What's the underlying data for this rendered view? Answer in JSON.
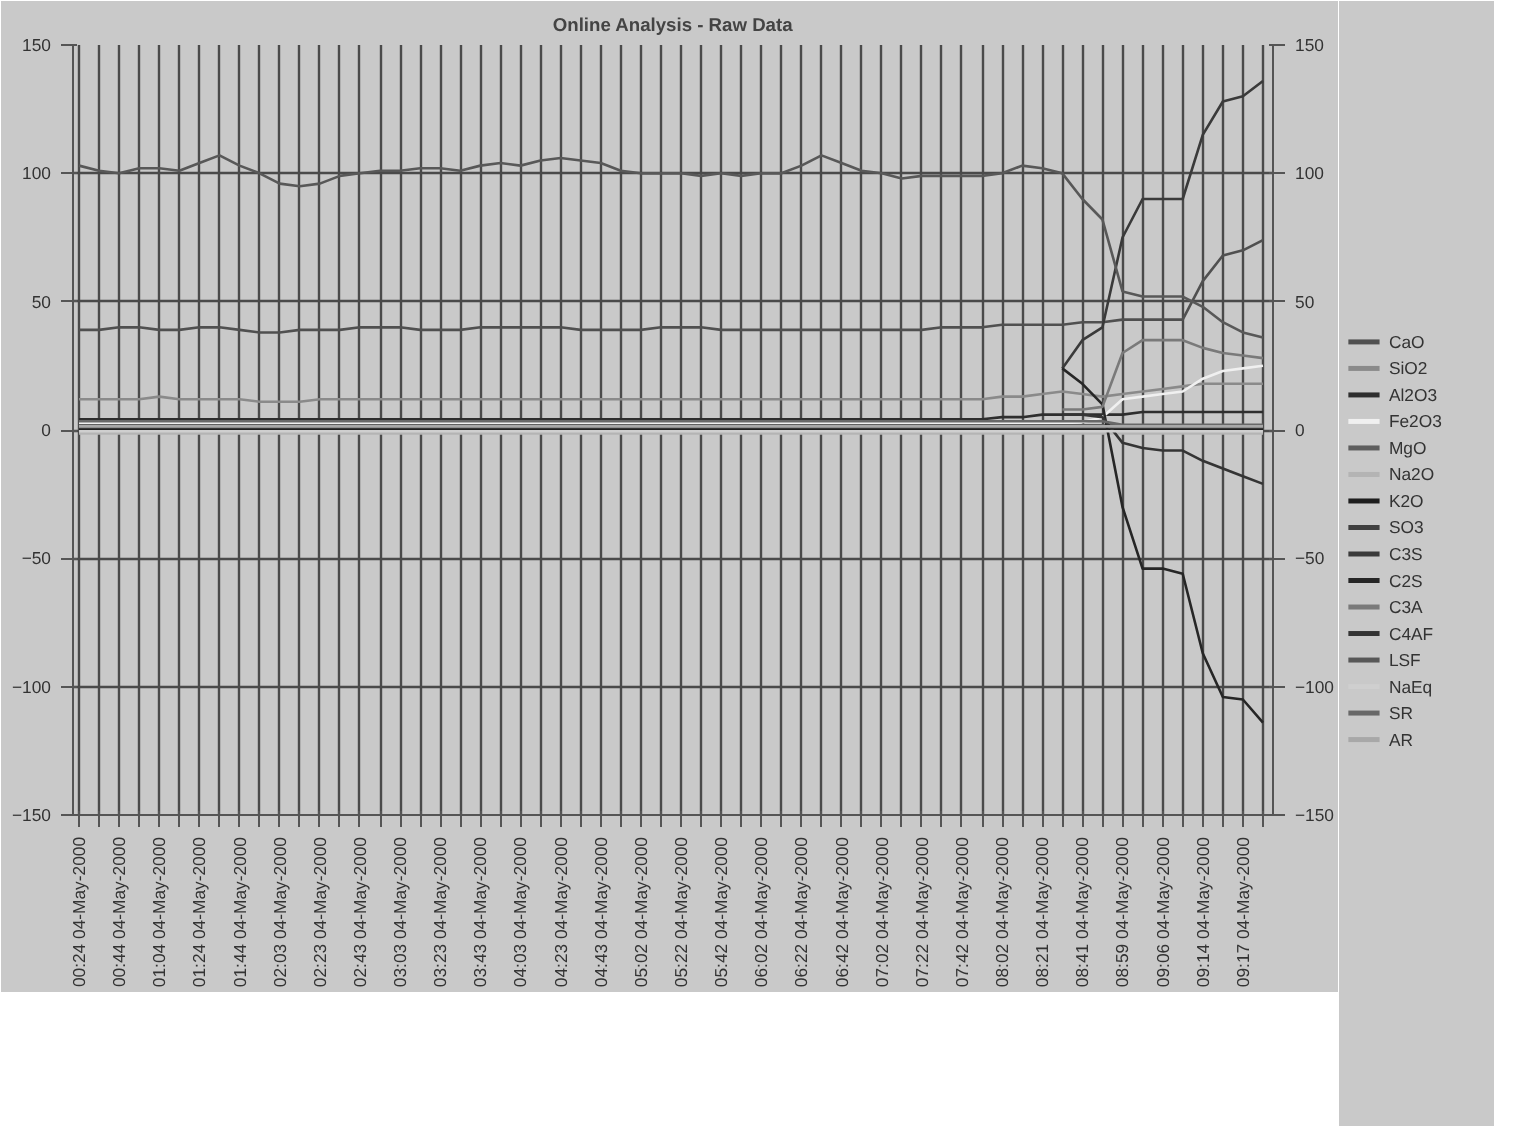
{
  "chart_data": {
    "type": "line",
    "title": "Online Analysis - Raw Data",
    "categories": [
      "00:24 04-May-2000",
      null,
      "00:44 04-May-2000",
      null,
      "01:04 04-May-2000",
      null,
      "01:24 04-May-2000",
      null,
      "01:44 04-May-2000",
      null,
      "02:03 04-May-2000",
      null,
      "02:23 04-May-2000",
      null,
      "02:43 04-May-2000",
      null,
      "03:03 04-May-2000",
      null,
      "03:23 04-May-2000",
      null,
      "03:43 04-May-2000",
      null,
      "04:03 04-May-2000",
      null,
      "04:23 04-May-2000",
      null,
      "04:43 04-May-2000",
      null,
      "05:02 04-May-2000",
      null,
      "05:22 04-May-2000",
      null,
      "05:42 04-May-2000",
      null,
      "06:02 04-May-2000",
      null,
      "06:22 04-May-2000",
      null,
      "06:42 04-May-2000",
      null,
      "07:02 04-May-2000",
      null,
      "07:22 04-May-2000",
      null,
      "07:42 04-May-2000",
      null,
      "08:02 04-May-2000",
      null,
      "08:21 04-May-2000",
      null,
      "08:41 04-May-2000",
      null,
      "08:59 04-May-2000",
      null,
      "09:06 04-May-2000",
      null,
      "09:14 04-May-2000",
      null,
      "09:17 04-May-2000",
      null
    ],
    "ylim": [
      -150,
      150
    ],
    "yticks": [
      -150,
      -100,
      -50,
      0,
      50,
      100,
      150
    ],
    "y2lim": [
      -150,
      150
    ],
    "y2ticks": [
      -150,
      -100,
      -50,
      0,
      50,
      100,
      150
    ],
    "grid": true,
    "legend": "right",
    "series": [
      {
        "name": "CaO",
        "color": "#505050",
        "values": [
          39,
          39,
          40,
          40,
          39,
          39,
          40,
          40,
          39,
          38,
          38,
          39,
          39,
          39,
          40,
          40,
          40,
          39,
          39,
          39,
          40,
          40,
          40,
          40,
          40,
          39,
          39,
          39,
          39,
          40,
          40,
          40,
          39,
          39,
          39,
          39,
          39,
          39,
          39,
          39,
          39,
          39,
          39,
          40,
          40,
          40,
          41,
          41,
          41,
          41,
          42,
          42,
          43,
          43,
          43,
          43,
          58,
          68,
          70,
          74
        ]
      },
      {
        "name": "SiO2",
        "color": "#8a8a8a",
        "values": [
          12,
          12,
          12,
          12,
          13,
          12,
          12,
          12,
          12,
          11,
          11,
          11,
          12,
          12,
          12,
          12,
          12,
          12,
          12,
          12,
          12,
          12,
          12,
          12,
          12,
          12,
          12,
          12,
          12,
          12,
          12,
          12,
          12,
          12,
          12,
          12,
          12,
          12,
          12,
          12,
          12,
          12,
          12,
          12,
          12,
          12,
          13,
          13,
          14,
          15,
          14,
          13,
          14,
          15,
          16,
          17,
          18,
          18,
          18,
          18
        ]
      },
      {
        "name": "Al2O3",
        "color": "#2e2e2e",
        "values": [
          4.2,
          4.2,
          4.2,
          4.2,
          4.2,
          4.2,
          4.2,
          4.2,
          4.2,
          4.2,
          4.2,
          4.2,
          4.2,
          4.2,
          4.2,
          4.2,
          4.2,
          4.2,
          4.2,
          4.2,
          4.2,
          4.2,
          4.2,
          4.2,
          4.2,
          4.2,
          4.2,
          4.2,
          4.2,
          4.2,
          4.2,
          4.2,
          4.2,
          4.2,
          4.2,
          4.2,
          4.2,
          4.2,
          4.2,
          4.2,
          4.2,
          4.2,
          4.2,
          4.2,
          4.2,
          4.2,
          5,
          5,
          6,
          6,
          6,
          6,
          6,
          7,
          7,
          7,
          7,
          7,
          7,
          7
        ]
      },
      {
        "name": "Fe2O3",
        "color": "#f0f0f0",
        "values": [
          2.6,
          2.6,
          2.6,
          2.6,
          2.6,
          2.6,
          2.6,
          2.6,
          2.6,
          2.6,
          2.6,
          2.6,
          2.6,
          2.6,
          2.6,
          2.6,
          2.6,
          2.6,
          2.6,
          2.6,
          2.6,
          2.6,
          2.6,
          2.6,
          2.6,
          2.6,
          2.6,
          2.6,
          2.6,
          2.6,
          2.6,
          2.6,
          2.6,
          2.6,
          2.6,
          2.6,
          2.6,
          2.6,
          2.6,
          2.6,
          2.6,
          2.6,
          2.6,
          2.6,
          2.6,
          2.6,
          2.6,
          2.6,
          2.6,
          2.6,
          3,
          5,
          12,
          13,
          14,
          15,
          20,
          23,
          24,
          25
        ]
      },
      {
        "name": "MgO",
        "color": "#5e5e5e",
        "values": [
          1.8,
          1.8,
          1.8,
          1.8,
          1.8,
          1.8,
          1.8,
          1.8,
          1.8,
          1.8,
          1.8,
          1.8,
          1.8,
          1.8,
          1.8,
          1.8,
          1.8,
          1.8,
          1.8,
          1.8,
          1.8,
          1.8,
          1.8,
          1.8,
          1.8,
          1.8,
          1.8,
          1.8,
          1.8,
          1.8,
          1.8,
          1.8,
          1.8,
          1.8,
          1.8,
          1.8,
          1.8,
          1.8,
          1.8,
          1.8,
          1.8,
          1.8,
          1.8,
          1.8,
          1.8,
          1.8,
          1.8,
          1.8,
          1.8,
          1.8,
          1.8,
          1.8,
          1.8,
          1.8,
          1.8,
          1.8,
          1.8,
          1.8,
          1.8,
          1.8
        ]
      },
      {
        "name": "Na2O",
        "color": "#b4b4b4",
        "values": [
          -1.3,
          -1.3,
          -1.3,
          -1.3,
          -1.3,
          -1.3,
          -1.3,
          -1.3,
          -1.3,
          -1.3,
          -1.3,
          -1.3,
          -1.3,
          -1.3,
          -1.3,
          -1.3,
          -1.3,
          -1.3,
          -1.3,
          -1.3,
          -1.3,
          -1.3,
          -1.3,
          -1.3,
          -1.3,
          -1.3,
          -1.3,
          -1.3,
          -1.3,
          -1.3,
          -1.3,
          -1.3,
          -1.3,
          -1.3,
          -1.3,
          -1.3,
          -1.3,
          -1.3,
          -1.3,
          -1.3,
          -1.3,
          -1.3,
          -1.3,
          -1.3,
          -1.3,
          -1.3,
          -1.3,
          -1.3,
          -1.3,
          -1.3,
          -1.3,
          -1.3,
          -1.3,
          -1.3,
          -1.3,
          -1.3,
          -1.3,
          -1.3,
          -1.3,
          -1.3
        ]
      },
      {
        "name": "K2O",
        "color": "#1e1e1e",
        "values": [
          0.5,
          0.5,
          0.5,
          0.5,
          0.5,
          0.5,
          0.5,
          0.5,
          0.5,
          0.5,
          0.5,
          0.5,
          0.5,
          0.5,
          0.5,
          0.5,
          0.5,
          0.5,
          0.5,
          0.5,
          0.5,
          0.5,
          0.5,
          0.5,
          0.5,
          0.5,
          0.5,
          0.5,
          0.5,
          0.5,
          0.5,
          0.5,
          0.5,
          0.5,
          0.5,
          0.5,
          0.5,
          0.5,
          0.5,
          0.5,
          0.5,
          0.5,
          0.5,
          0.5,
          0.5,
          0.5,
          0.5,
          0.5,
          0.5,
          0.5,
          0.5,
          0.5,
          0.5,
          0.5,
          0.5,
          0.5,
          0.5,
          0.5,
          0.5,
          0.5
        ]
      },
      {
        "name": "SO3",
        "color": "#404040",
        "values": [
          1,
          1,
          1,
          1,
          1,
          1,
          1,
          1,
          1,
          1,
          1,
          1,
          1,
          1,
          1,
          1,
          1,
          1,
          1,
          1,
          1,
          1,
          1,
          1,
          1,
          1,
          1,
          1,
          1,
          1,
          1,
          1,
          1,
          1,
          1,
          1,
          1,
          1,
          1,
          1,
          1,
          1,
          1,
          1,
          1,
          1,
          1,
          1,
          1,
          1,
          1,
          1,
          1,
          1,
          1,
          1,
          1,
          1,
          1,
          1
        ]
      },
      {
        "name": "C3S",
        "color": "#3a3a3a",
        "values": [
          null,
          null,
          null,
          null,
          null,
          null,
          null,
          null,
          null,
          null,
          null,
          null,
          null,
          null,
          null,
          null,
          null,
          null,
          null,
          null,
          null,
          null,
          null,
          null,
          null,
          null,
          null,
          null,
          null,
          null,
          null,
          null,
          null,
          null,
          null,
          null,
          null,
          null,
          null,
          null,
          null,
          null,
          null,
          null,
          null,
          null,
          null,
          null,
          null,
          24,
          35,
          40,
          75,
          90,
          90,
          90,
          115,
          128,
          130,
          136
        ]
      },
      {
        "name": "C2S",
        "color": "#262626",
        "values": [
          null,
          null,
          null,
          null,
          null,
          null,
          null,
          null,
          null,
          null,
          null,
          null,
          null,
          null,
          null,
          null,
          null,
          null,
          null,
          null,
          null,
          null,
          null,
          null,
          null,
          null,
          null,
          null,
          null,
          null,
          null,
          null,
          null,
          null,
          null,
          null,
          null,
          null,
          null,
          null,
          null,
          null,
          null,
          null,
          null,
          null,
          null,
          null,
          null,
          24,
          18,
          10,
          -30,
          -54,
          -54,
          -56,
          -87,
          -104,
          -105,
          -114
        ]
      },
      {
        "name": "C3A",
        "color": "#7a7a7a",
        "values": [
          null,
          null,
          null,
          null,
          null,
          null,
          null,
          null,
          null,
          null,
          null,
          null,
          null,
          null,
          null,
          null,
          null,
          null,
          null,
          null,
          null,
          null,
          null,
          null,
          null,
          null,
          null,
          null,
          null,
          null,
          null,
          null,
          null,
          null,
          null,
          null,
          null,
          null,
          null,
          null,
          null,
          null,
          null,
          null,
          null,
          null,
          null,
          null,
          null,
          8,
          8,
          9,
          30,
          35,
          35,
          35,
          32,
          30,
          29,
          28
        ]
      },
      {
        "name": "C4AF",
        "color": "#343434",
        "values": [
          null,
          null,
          null,
          null,
          null,
          null,
          null,
          null,
          null,
          null,
          null,
          null,
          null,
          null,
          null,
          null,
          null,
          null,
          null,
          null,
          null,
          null,
          null,
          null,
          null,
          null,
          null,
          null,
          null,
          null,
          null,
          null,
          null,
          null,
          null,
          null,
          null,
          null,
          null,
          null,
          null,
          null,
          null,
          null,
          null,
          null,
          null,
          null,
          null,
          6,
          6,
          5,
          -5,
          -7,
          -8,
          -8,
          -12,
          -15,
          -18,
          -21
        ]
      },
      {
        "name": "LSF",
        "color": "#585858",
        "values": [
          103,
          101,
          100,
          102,
          102,
          101,
          104,
          107,
          103,
          100,
          96,
          95,
          96,
          99,
          100,
          101,
          101,
          102,
          102,
          101,
          103,
          104,
          103,
          105,
          106,
          105,
          104,
          101,
          100,
          100,
          100,
          99,
          100,
          99,
          100,
          100,
          103,
          107,
          104,
          101,
          100,
          98,
          99,
          99,
          99,
          99,
          100,
          103,
          102,
          100,
          90,
          82,
          54,
          52,
          52,
          52,
          48,
          42,
          38,
          36
        ]
      },
      {
        "name": "NaEq",
        "color": "#cfcfcf",
        "values": [
          -0.5,
          -0.5,
          -0.5,
          -0.5,
          -0.5,
          -0.5,
          -0.5,
          -0.5,
          -0.5,
          -0.5,
          -0.5,
          -0.5,
          -0.5,
          -0.5,
          -0.5,
          -0.5,
          -0.5,
          -0.5,
          -0.5,
          -0.5,
          -0.5,
          -0.5,
          -0.5,
          -0.5,
          -0.5,
          -0.5,
          -0.5,
          -0.5,
          -0.5,
          -0.5,
          -0.5,
          -0.5,
          -0.5,
          -0.5,
          -0.5,
          -0.5,
          -0.5,
          -0.5,
          -0.5,
          -0.5,
          -0.5,
          -0.5,
          -0.5,
          -0.5,
          -0.5,
          -0.5,
          -0.5,
          -0.5,
          -0.5,
          -0.5,
          -0.5,
          -0.5,
          -0.5,
          -0.5,
          -0.5,
          -0.5,
          -0.5,
          -0.5,
          -0.5,
          -0.5
        ]
      },
      {
        "name": "SR",
        "color": "#686868",
        "values": [
          3.4,
          3.4,
          3.4,
          3.4,
          3.4,
          3.4,
          3.4,
          3.4,
          3.4,
          3.4,
          3.4,
          3.4,
          3.4,
          3.4,
          3.4,
          3.4,
          3.4,
          3.4,
          3.4,
          3.4,
          3.4,
          3.4,
          3.4,
          3.4,
          3.4,
          3.4,
          3.4,
          3.4,
          3.4,
          3.4,
          3.4,
          3.4,
          3.4,
          3.4,
          3.4,
          3.4,
          3.4,
          3.4,
          3.4,
          3.4,
          3.4,
          3.4,
          3.4,
          3.4,
          3.4,
          3.4,
          3.4,
          3.4,
          3.4,
          3.4,
          3.4,
          3.4,
          2,
          2,
          2,
          2,
          2,
          2,
          2,
          2
        ]
      },
      {
        "name": "AR",
        "color": "#a8a8a8",
        "values": [
          1.4,
          1.4,
          1.4,
          1.4,
          1.4,
          1.4,
          1.4,
          1.4,
          1.4,
          1.4,
          1.4,
          1.4,
          1.4,
          1.4,
          1.4,
          1.4,
          1.4,
          1.4,
          1.4,
          1.4,
          1.4,
          1.4,
          1.4,
          1.4,
          1.4,
          1.4,
          1.4,
          1.4,
          1.4,
          1.4,
          1.4,
          1.4,
          1.4,
          1.4,
          1.4,
          1.4,
          1.4,
          1.4,
          1.4,
          1.4,
          1.4,
          1.4,
          1.4,
          1.4,
          1.4,
          1.4,
          1.4,
          1.4,
          1.4,
          1.4,
          1.4,
          1.4,
          1.4,
          1.4,
          1.4,
          1.4,
          1.4,
          1.4,
          1.4,
          1.4
        ]
      }
    ]
  }
}
